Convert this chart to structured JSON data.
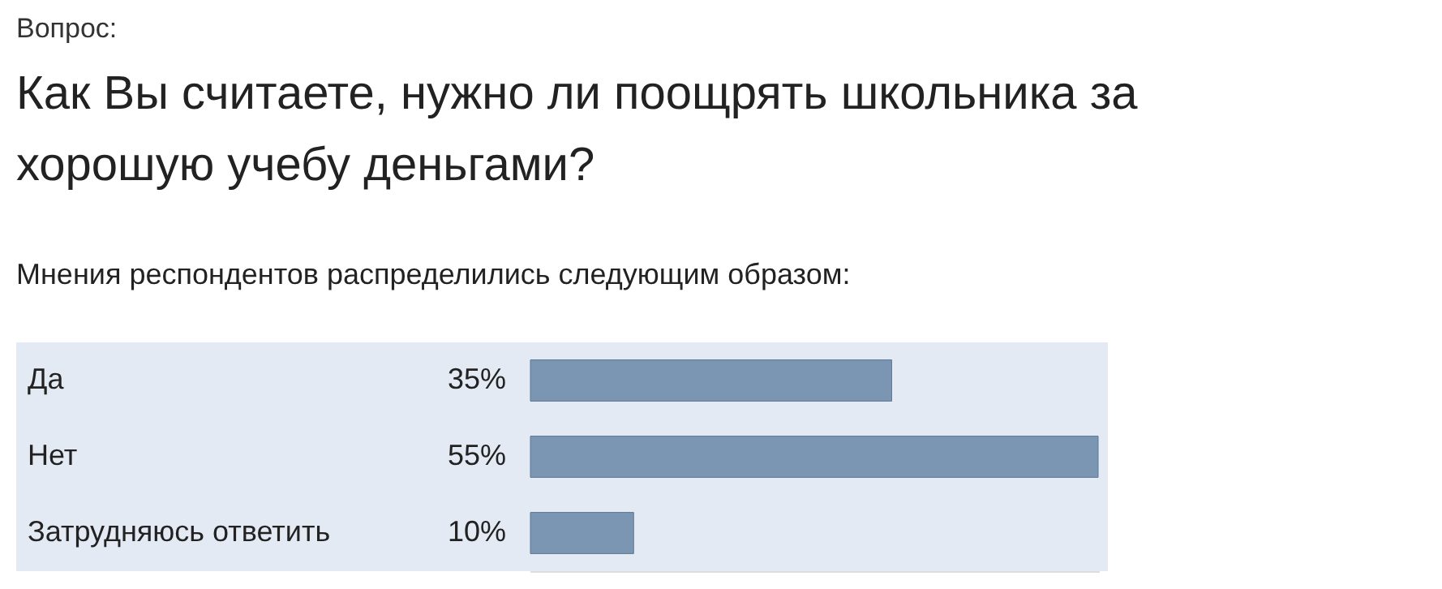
{
  "chart_data": {
    "type": "bar",
    "orientation": "horizontal",
    "title": "Как Вы считаете, нужно ли поощрять школьника за хорошую учебу деньгами?",
    "subtitle": "Мнения респондентов распределились следующим образом:",
    "annotations": [
      "Вопрос:"
    ],
    "categories": [
      "Да",
      "Нет",
      "Затрудняюсь ответить"
    ],
    "values": [
      35,
      55,
      10
    ],
    "value_labels": [
      "35%",
      "55%",
      "10%"
    ],
    "color": "#7b96b3"
  }
}
